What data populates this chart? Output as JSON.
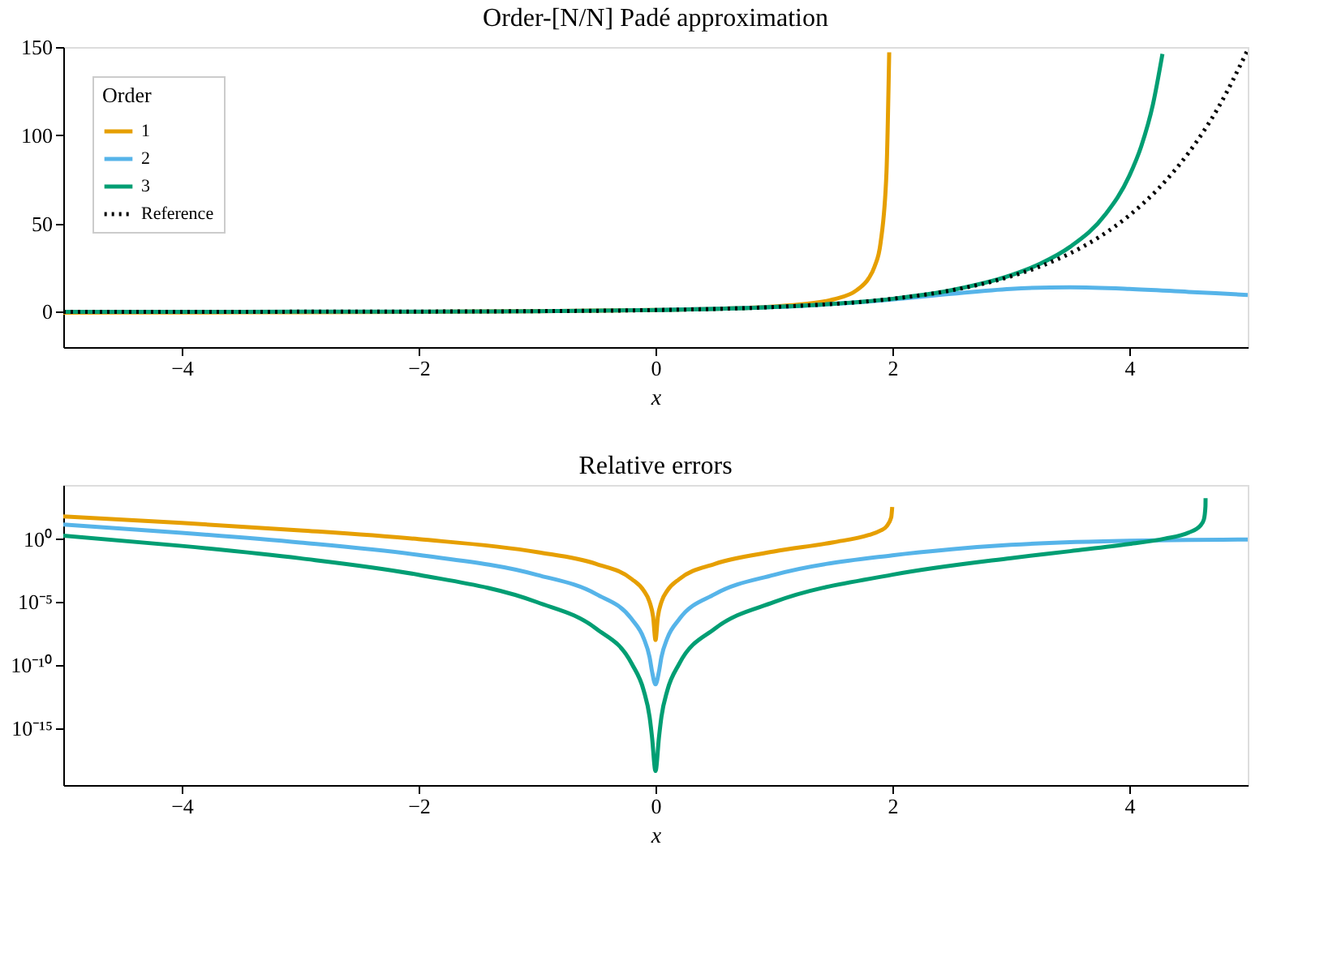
{
  "chart_data": [
    {
      "type": "line",
      "title": "Order-[N/N] Padé approximation",
      "xlabel": "x",
      "legend_title": "Order",
      "legend": "top left",
      "grid": false,
      "xlim": [
        -5,
        5
      ],
      "xticks": [
        -4,
        -2,
        0,
        2,
        4
      ],
      "ylim": [
        -20,
        150
      ],
      "yticks": [
        0,
        50,
        100,
        150
      ],
      "series": [
        {
          "name": "1",
          "color": "#e69f00",
          "line_style": "solid",
          "x": [
            -5,
            -4,
            -3,
            -2,
            -1,
            0,
            0.5,
            1,
            1.25,
            1.5,
            1.7,
            1.8,
            1.85,
            1.9,
            1.95,
            1.973
          ],
          "values": [
            -0.43,
            -0.33,
            -0.2,
            0,
            0.33,
            1,
            1.67,
            3,
            4.33,
            7,
            12.33,
            19,
            25.7,
            39,
            79,
            147
          ]
        },
        {
          "name": "2",
          "color": "#56b4e9",
          "line_style": "solid",
          "x": [
            0,
            1,
            1.5,
            2,
            2.5,
            3,
            3.5,
            4,
            4.5,
            5
          ],
          "values": [
            1,
            2.71,
            4.43,
            7,
            10.23,
            13,
            13.92,
            13,
            11.29,
            9.57
          ]
        },
        {
          "name": "3",
          "color": "#009e73",
          "line_style": "solid",
          "x": [
            -5,
            -4,
            -3,
            -2,
            -1,
            0,
            1,
            2,
            2.5,
            3,
            3.25,
            3.5,
            3.8,
            4,
            4.1,
            4.2,
            4.28
          ],
          "values": [
            -0.006,
            0.013,
            0.048,
            0.135,
            0.37,
            1,
            2.72,
            7.4,
            12.28,
            20.7,
            27.3,
            36.8,
            55.3,
            77,
            93.6,
            117.6,
            146.1
          ]
        },
        {
          "name": "Reference",
          "color": "#000000",
          "line_style": "dotted",
          "x": [
            -5,
            -4,
            -3,
            -2,
            -1,
            0,
            1,
            2,
            2.5,
            3,
            3.25,
            3.5,
            3.75,
            4,
            4.25,
            4.5,
            4.75,
            5
          ],
          "values": [
            0.0067,
            0.018,
            0.05,
            0.135,
            0.37,
            1,
            2.72,
            7.39,
            12.18,
            20.09,
            25.79,
            33.12,
            42.52,
            54.6,
            70.11,
            90.02,
            115.58,
            148.4
          ]
        }
      ]
    },
    {
      "type": "line",
      "title": "Relative errors",
      "xlabel": "x",
      "log": "y",
      "grid": false,
      "legend": false,
      "xlim": [
        -5,
        5
      ],
      "xticks": [
        -4,
        -2,
        0,
        2,
        4
      ],
      "ylim": [
        3e-20,
        20000.0
      ],
      "yticks": [
        {
          "value": 1e-15,
          "label": "10⁻¹⁵"
        },
        {
          "value": 1e-10,
          "label": "10⁻¹⁰"
        },
        {
          "value": 1e-05,
          "label": "10⁻⁵"
        },
        {
          "value": 1,
          "label": "10⁰"
        }
      ],
      "series": [
        {
          "color": "#e69f00",
          "line_style": "solid",
          "x": [
            -5,
            -4,
            -3,
            -2,
            -1,
            -0.5,
            -0.2,
            -0.1,
            -0.05,
            -0.02,
            0,
            0.02,
            0.05,
            0.1,
            0.2,
            0.5,
            1,
            1.5,
            1.8,
            1.9,
            1.95,
            1.99,
            1.9985
          ],
          "values": [
            64.6,
            19.2,
            5.02,
            1,
            0.094,
            0.0108,
            0.00067,
            8.3e-05,
            1.04e-05,
            6.7e-07,
            1e-08,
            6.7e-07,
            1.04e-05,
            8.3e-05,
            0.00067,
            0.0109,
            0.104,
            0.5625,
            2.14,
            4.83,
            10.2,
            53.5,
            360
          ]
        },
        {
          "color": "#56b4e9",
          "line_style": "solid",
          "x": [
            -5,
            -4,
            -3,
            -2,
            -1,
            -0.5,
            -0.2,
            -0.1,
            -0.05,
            -0.03,
            0,
            0.03,
            0.05,
            0.1,
            0.2,
            0.5,
            1,
            2,
            2.5,
            3,
            3.5,
            4,
            4.5,
            5
          ],
          "values": [
            14.5,
            3.2,
            0.545,
            0.056,
            0.00147,
            4.3e-05,
            4.4e-07,
            1.39e-08,
            4.3e-10,
            3.4e-11,
            3e-12,
            3.4e-11,
            4.3e-10,
            1.39e-08,
            4.4e-07,
            4.3e-05,
            0.00147,
            0.0527,
            0.16,
            0.353,
            0.58,
            0.762,
            0.875,
            0.935
          ]
        },
        {
          "color": "#009e73",
          "line_style": "solid",
          "x": [
            -5,
            -4,
            -3,
            -2,
            -1,
            -0.5,
            -0.2,
            -0.1,
            -0.05,
            -0.03,
            0,
            0.03,
            0.05,
            0.1,
            0.2,
            0.5,
            1,
            2,
            3,
            3.5,
            4,
            4.3,
            4.5,
            4.6,
            4.63,
            4.643,
            4.644
          ],
          "values": [
            1.88,
            0.291,
            0.0303,
            0.00148,
            9.9e-06,
            7.75e-08,
            1.27e-10,
            9.9e-13,
            7.75e-15,
            2.2e-16,
            4e-19,
            2.2e-16,
            7.75e-15,
            9.9e-13,
            1.27e-10,
            7.75e-08,
            1e-05,
            0.0015,
            0.0313,
            0.111,
            0.41,
            1.1,
            3.29,
            11.86,
            37.7,
            403,
            1800
          ]
        }
      ]
    }
  ]
}
